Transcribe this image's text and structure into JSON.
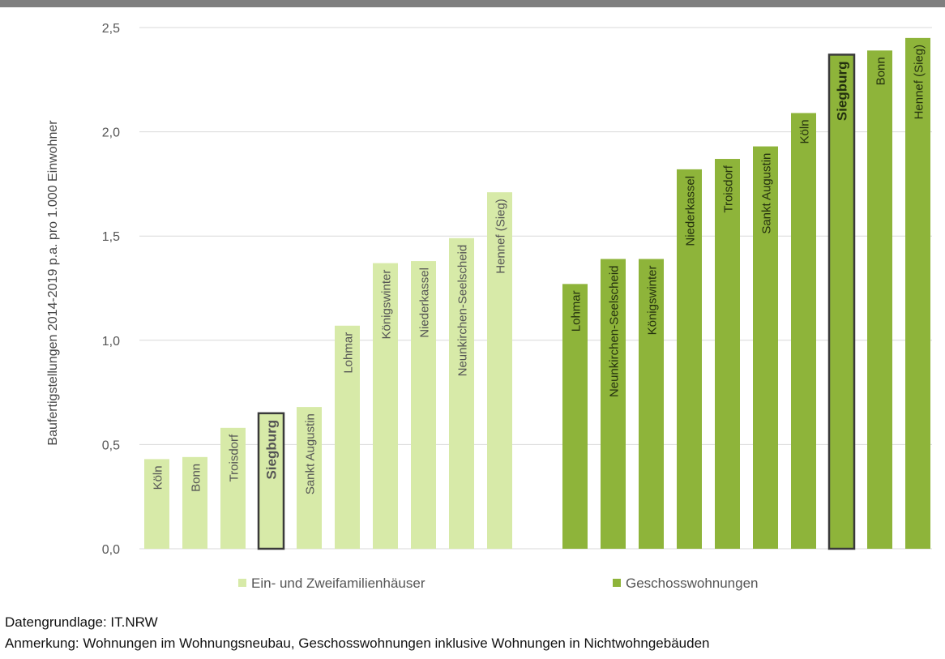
{
  "chart_data": {
    "type": "bar",
    "ylabel": "Baufertigstellungen 2014-2019 p.a. pro 1.000 Einwohner",
    "ylim": [
      0,
      2.5
    ],
    "yticks": [
      "0,0",
      "0,5",
      "1,0",
      "1,5",
      "2,0",
      "2,5"
    ],
    "ytick_values": [
      0,
      0.5,
      1.0,
      1.5,
      2.0,
      2.5
    ],
    "grid": true,
    "legend_position": "bottom",
    "highlight_label": "Siegburg",
    "series": [
      {
        "name": "Ein- und Zweifamilienhäuser",
        "color": "#d7eaa8",
        "categories": [
          "Köln",
          "Bonn",
          "Troisdorf",
          "Siegburg",
          "Sankt Augustin",
          "Lohmar",
          "Königswinter",
          "Niederkassel",
          "Neunkirchen-Seelscheid",
          "Hennef (Sieg)"
        ],
        "values": [
          0.43,
          0.44,
          0.58,
          0.65,
          0.68,
          1.07,
          1.37,
          1.38,
          1.49,
          1.71
        ]
      },
      {
        "name": "Geschosswohnungen",
        "color": "#8eb43a",
        "categories": [
          "Lohmar",
          "Neunkirchen-Seelscheid",
          "Königswinter",
          "Niederkassel",
          "Troisdorf",
          "Sankt Augustin",
          "Köln",
          "Siegburg",
          "Bonn",
          "Hennef (Sieg)"
        ],
        "values": [
          1.27,
          1.39,
          1.39,
          1.82,
          1.87,
          1.93,
          2.09,
          2.37,
          2.39,
          2.45
        ]
      }
    ]
  },
  "notes": {
    "source": "Datengrundlage: IT.NRW",
    "remark": "Anmerkung: Wohnungen im Wohnungsneubau, Geschosswohnungen inklusive Wohnungen in Nichtwohngebäuden"
  }
}
